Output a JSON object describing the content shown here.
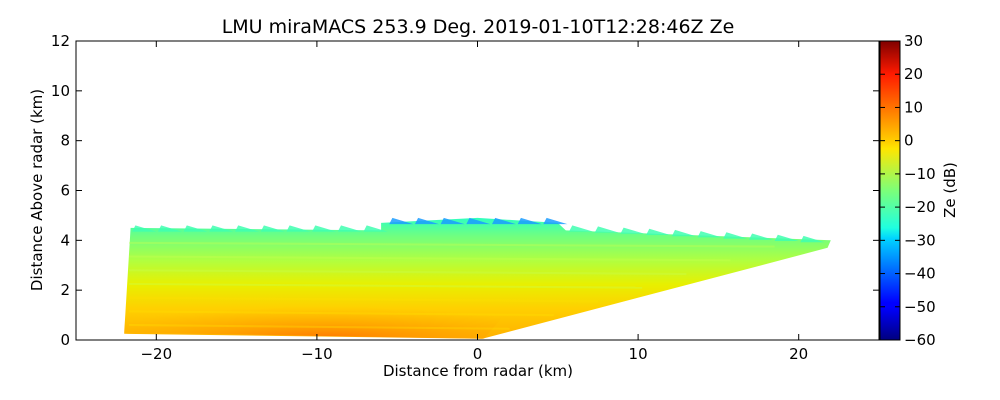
{
  "chart_data": {
    "type": "heatmap",
    "title": "LMU miraMACS 253.9 Deg. 2019-01-10T12:28:46Z  Ze",
    "xlabel": "Distance from radar (km)",
    "ylabel": "Distance Above radar  (km)",
    "xlim": [
      -25,
      25
    ],
    "ylim": [
      0,
      12
    ],
    "xticks": [
      "−20",
      "−10",
      "0",
      "10",
      "20"
    ],
    "yticks": [
      "0",
      "2",
      "4",
      "6",
      "8",
      "10",
      "12"
    ],
    "grid": false,
    "colorbar": {
      "label": "Ze (dB)",
      "range": [
        -60,
        30
      ],
      "colormap": "jet",
      "ticks": [
        "30",
        "20",
        "10",
        "0",
        "−10",
        "−20",
        "−30",
        "−40",
        "−50",
        "−60"
      ]
    },
    "radar_scan": {
      "azimuth_deg": 253.9,
      "left_edge_km": -22,
      "right_edge_km": 22,
      "cloud_top_km": 4.5,
      "cloud_top_center_km": 4.9,
      "near_surface_ze_db": 12,
      "upper_cloud_ze_db": -18,
      "cloud_top_ze_db": -32
    }
  }
}
